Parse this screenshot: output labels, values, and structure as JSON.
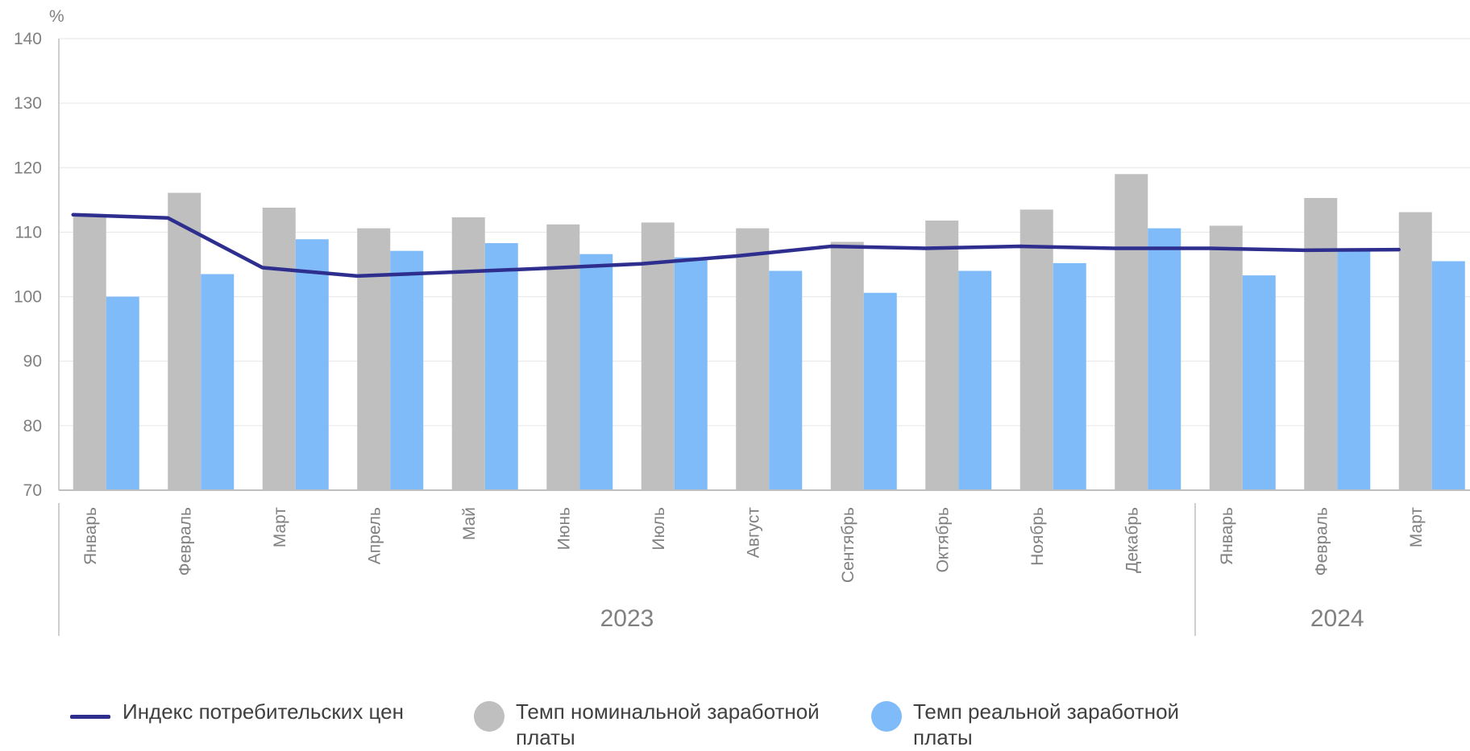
{
  "chart_data": {
    "type": "bar",
    "unit_label": "%",
    "ylim": [
      70,
      140
    ],
    "yticks": [
      70,
      80,
      90,
      100,
      110,
      120,
      130,
      140
    ],
    "grid": true,
    "categories": [
      "Январь",
      "Февраль",
      "Март",
      "Апрель",
      "Май",
      "Июнь",
      "Июль",
      "Август",
      "Сентябрь",
      "Октябрь",
      "Ноябрь",
      "Декабрь",
      "Январь",
      "Февраль",
      "Март"
    ],
    "years": [
      {
        "label": "2023",
        "start": 0,
        "count": 12
      },
      {
        "label": "2024",
        "start": 12,
        "count": 3
      }
    ],
    "series": [
      {
        "name": "Темп номинальной заработной платы",
        "kind": "bar",
        "color": "#bfbfbf",
        "values": [
          112.6,
          116.1,
          113.8,
          110.6,
          112.3,
          111.2,
          111.5,
          110.6,
          108.5,
          111.8,
          113.5,
          119.0,
          111.0,
          115.3,
          113.1
        ]
      },
      {
        "name": "Темп реальной заработной платы",
        "kind": "bar",
        "color": "#7fbbf8",
        "values": [
          100.0,
          103.5,
          108.9,
          107.1,
          108.3,
          106.6,
          106.1,
          104.0,
          100.6,
          104.0,
          105.2,
          110.6,
          103.3,
          107.1,
          105.5
        ]
      },
      {
        "name": "Индекс потребительских цен",
        "kind": "line",
        "color": "#2e2e8f",
        "values": [
          112.7,
          112.2,
          104.5,
          103.2,
          103.8,
          104.4,
          105.1,
          106.3,
          107.8,
          107.5,
          107.8,
          107.5,
          107.5,
          107.2,
          107.3
        ]
      }
    ],
    "legend": [
      {
        "label": "Индекс потребительских цен",
        "marker": "line",
        "color": "#2e2e8f"
      },
      {
        "label": "Темп номинальной заработной платы",
        "marker": "circle",
        "color": "#bfbfbf"
      },
      {
        "label": "Темп реальной заработной платы",
        "marker": "circle",
        "color": "#7fbbf8"
      }
    ]
  }
}
